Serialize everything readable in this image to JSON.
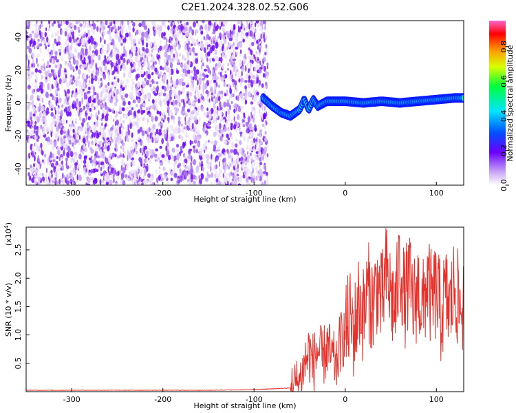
{
  "title": "C2E1.2024.328.02.52.G06",
  "chart_data": [
    {
      "type": "heatmap",
      "xlabel": "Height of straight line (km)",
      "ylabel": "Frequency (Hz)",
      "xlim": [
        -350,
        130
      ],
      "ylim": [
        -50,
        50
      ],
      "xticks": [
        -300,
        -200,
        -100,
        0,
        100
      ],
      "yticks": [
        -40,
        -20,
        0,
        20,
        40
      ],
      "noise_region_x": [
        -350,
        -85
      ],
      "signal_track": {
        "x": [
          -90,
          -80,
          -70,
          -60,
          -50,
          -45,
          -40,
          -35,
          -30,
          -20,
          0,
          20,
          40,
          60,
          80,
          100,
          120,
          130
        ],
        "y": [
          3,
          -2,
          -6,
          -8,
          -4,
          2,
          -4,
          2,
          -2,
          1,
          1,
          0,
          1,
          0,
          1,
          2,
          3,
          3
        ]
      },
      "colorbar": {
        "label": "Normalized spectral amplitude",
        "range": [
          0.0,
          0.95
        ],
        "ticks": [
          0.0,
          0.2,
          0.4,
          0.6,
          0.8
        ],
        "tick_labels": [
          "0.0",
          "0.2",
          "0.4",
          "0.6",
          "0.8"
        ]
      },
      "grid": false
    },
    {
      "type": "line",
      "xlabel": "Height of straight line (km)",
      "ylabel": "SNR (10 * v/v)",
      "yscale_label": "(x10",
      "yscale_exp": "4",
      "yscale_close": ")",
      "xlim": [
        -350,
        130
      ],
      "ylim": [
        0,
        2.9
      ],
      "xticks": [
        -300,
        -200,
        -100,
        0,
        100
      ],
      "yticks": [
        0.5,
        1.0,
        1.5,
        2.0,
        2.5
      ],
      "ytick_labels": [
        "0.5",
        "1.0",
        "1.5",
        "2.0",
        "2.5"
      ],
      "series": [
        {
          "color": "#e8302a",
          "x": [
            -350,
            -300,
            -250,
            -200,
            -150,
            -100,
            -60,
            -50,
            -45,
            -40,
            -35,
            -30,
            -25,
            -20,
            -15,
            -10,
            -5,
            0,
            5,
            10,
            15,
            20,
            25,
            30,
            35,
            40,
            45,
            50,
            55,
            60,
            65,
            70,
            75,
            80,
            85,
            90,
            95,
            100,
            105,
            110,
            115,
            120,
            125,
            130
          ],
          "y": [
            0.02,
            0.02,
            0.02,
            0.02,
            0.02,
            0.03,
            0.06,
            0.2,
            0.45,
            0.7,
            0.5,
            0.75,
            0.55,
            0.8,
            0.6,
            0.45,
            0.9,
            1.0,
            1.3,
            1.05,
            1.6,
            1.35,
            1.8,
            1.5,
            1.9,
            1.55,
            2.1,
            1.7,
            1.45,
            2.3,
            1.6,
            1.95,
            1.5,
            1.85,
            1.4,
            2.0,
            1.55,
            1.8,
            1.35,
            1.7,
            1.45,
            1.9,
            1.5,
            1.55
          ]
        }
      ],
      "grid": false
    }
  ]
}
